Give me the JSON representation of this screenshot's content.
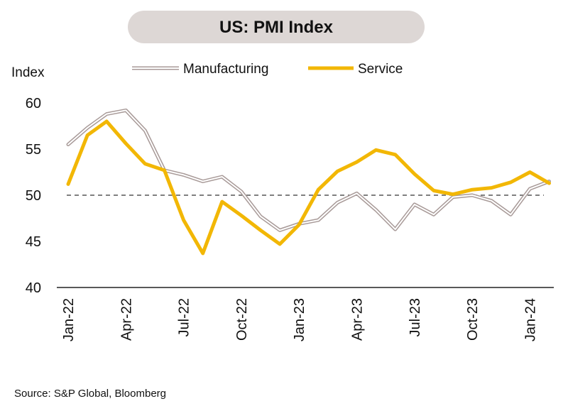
{
  "chart_data": {
    "type": "line",
    "title": "US: PMI Index",
    "ylabel": "Index",
    "xlabel": "",
    "ylim": [
      40,
      60
    ],
    "yticks": [
      40,
      45,
      50,
      55,
      60
    ],
    "reference_line": 50,
    "x_tick_labels": [
      "Jan-22",
      "Apr-22",
      "Jul-22",
      "Oct-22",
      "Jan-23",
      "Apr-23",
      "Jul-23",
      "Oct-23",
      "Jan-24"
    ],
    "x_tick_positions": [
      0,
      3,
      6,
      9,
      12,
      15,
      18,
      21,
      24
    ],
    "grid": false,
    "legend_position": "top-center",
    "series": [
      {
        "name": "Manufacturing",
        "color": "#a89a98",
        "style": "double",
        "values": [
          55.5,
          57.3,
          58.8,
          59.2,
          57.0,
          52.7,
          52.2,
          51.5,
          52.0,
          50.4,
          47.7,
          46.2,
          46.9,
          47.3,
          49.2,
          50.2,
          48.4,
          46.3,
          49.0,
          47.9,
          49.8,
          50.0,
          49.4,
          47.9,
          50.7,
          51.5
        ]
      },
      {
        "name": "Service",
        "color": "#f2b705",
        "style": "solid",
        "values": [
          51.2,
          56.5,
          58.0,
          55.6,
          53.4,
          52.7,
          47.3,
          43.7,
          49.3,
          47.8,
          46.2,
          44.7,
          46.8,
          50.6,
          52.6,
          53.6,
          54.9,
          54.4,
          52.3,
          50.5,
          50.1,
          50.6,
          50.8,
          51.4,
          52.5,
          51.3
        ]
      }
    ],
    "source": "Source: S&P Global, Bloomberg"
  }
}
